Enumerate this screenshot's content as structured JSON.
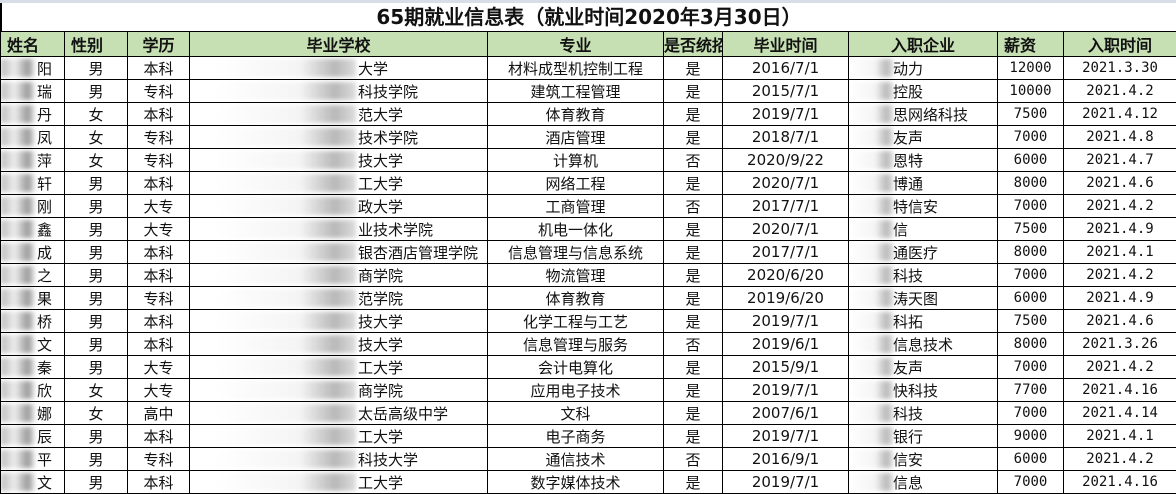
{
  "title": "65期就业信息表（就业时间2020年3月30日）",
  "colors": {
    "header_bg": "#c6e0b4",
    "border": "#000000"
  },
  "headers": [
    "姓名",
    "性别",
    "学历",
    "毕业学校",
    "专业",
    "是否统招",
    "毕业时间",
    "入职企业",
    "薪资",
    "入职时间"
  ],
  "rows": [
    [
      "阳",
      "男",
      "本科",
      "大学",
      "材料成型机控制工程",
      "是",
      "2016/7/1",
      "动力",
      "12000",
      "2021.3.30"
    ],
    [
      "瑞",
      "男",
      "专科",
      "科技学院",
      "建筑工程管理",
      "是",
      "2015/7/1",
      "控股",
      "10000",
      "2021.4.2"
    ],
    [
      "丹",
      "女",
      "本科",
      "范大学",
      "体育教育",
      "是",
      "2019/7/1",
      "思网络科技",
      "7500",
      "2021.4.12"
    ],
    [
      "凤",
      "女",
      "专科",
      "技术学院",
      "酒店管理",
      "是",
      "2018/7/1",
      "友声",
      "7000",
      "2021.4.8"
    ],
    [
      "萍",
      "女",
      "专科",
      "技大学",
      "计算机",
      "否",
      "2020/9/22",
      "恩特",
      "6000",
      "2021.4.7"
    ],
    [
      "轩",
      "男",
      "本科",
      "工大学",
      "网络工程",
      "是",
      "2020/7/1",
      "博通",
      "8000",
      "2021.4.6"
    ],
    [
      "刚",
      "男",
      "大专",
      "政大学",
      "工商管理",
      "否",
      "2017/7/1",
      "特信安",
      "7000",
      "2021.4.2"
    ],
    [
      "鑫",
      "男",
      "大专",
      "业技术学院",
      "机电一体化",
      "是",
      "2020/7/1",
      "信",
      "7500",
      "2021.4.9"
    ],
    [
      "成",
      "男",
      "本科",
      "银杏酒店管理学院",
      "信息管理与信息系统",
      "是",
      "2017/7/1",
      "通医疗",
      "8000",
      "2021.4.1"
    ],
    [
      "之",
      "男",
      "本科",
      "商学院",
      "物流管理",
      "是",
      "2020/6/20",
      "科技",
      "7000",
      "2021.4.2"
    ],
    [
      "果",
      "男",
      "专科",
      "范学院",
      "体育教育",
      "是",
      "2019/6/20",
      "涛天图",
      "6000",
      "2021.4.9"
    ],
    [
      "桥",
      "男",
      "本科",
      "技大学",
      "化学工程与工艺",
      "是",
      "2019/7/1",
      "科拓",
      "7500",
      "2021.4.6"
    ],
    [
      "文",
      "男",
      "本科",
      "技大学",
      "信息管理与服务",
      "否",
      "2019/6/1",
      "信息技术",
      "8000",
      "2021.3.26"
    ],
    [
      "秦",
      "男",
      "大专",
      "工大学",
      "会计电算化",
      "是",
      "2015/9/1",
      "友声",
      "7000",
      "2021.4.2"
    ],
    [
      "欣",
      "女",
      "大专",
      "商学院",
      "应用电子技术",
      "是",
      "2019/7/1",
      "快科技",
      "7700",
      "2021.4.16"
    ],
    [
      "娜",
      "女",
      "高中",
      "太岳高级中学",
      "文科",
      "是",
      "2007/6/1",
      "科技",
      "7000",
      "2021.4.14"
    ],
    [
      "辰",
      "男",
      "本科",
      "工大学",
      "电子商务",
      "是",
      "2019/7/1",
      "银行",
      "9000",
      "2021.4.1"
    ],
    [
      "平",
      "男",
      "专科",
      "科技大学",
      "通信技术",
      "否",
      "2016/9/1",
      "信安",
      "6000",
      "2021.4.2"
    ],
    [
      "文",
      "男",
      "本科",
      "工大学",
      "数字媒体技术",
      "是",
      "2019/7/1",
      "信息",
      "7000",
      "2021.4.16"
    ]
  ]
}
